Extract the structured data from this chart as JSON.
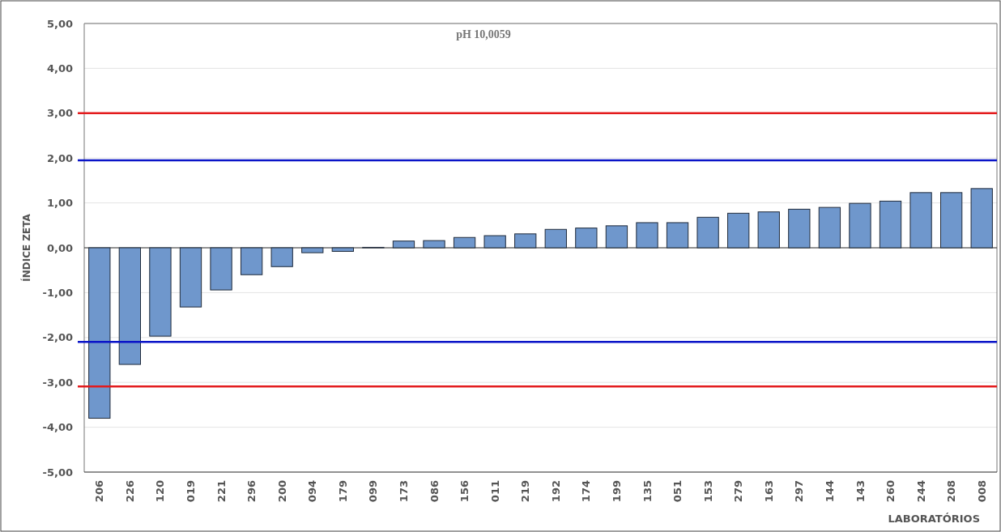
{
  "chart_data": {
    "type": "bar",
    "title": "pH 10,0059",
    "xlabel": "LABORATÓRIOS",
    "ylabel": "ÍNDICE ZETA",
    "categories": [
      "206",
      "226",
      "120",
      "019",
      "221",
      "296",
      "200",
      "094",
      "179",
      "099",
      "173",
      "086",
      "156",
      "011",
      "219",
      "192",
      "174",
      "199",
      "135",
      "051",
      "153",
      "279",
      "163",
      "297",
      "144",
      "143",
      "260",
      "244",
      "208",
      "008"
    ],
    "values": [
      -3.8,
      -2.6,
      -1.97,
      -1.32,
      -0.94,
      -0.6,
      -0.42,
      -0.11,
      -0.08,
      0.01,
      0.15,
      0.16,
      0.23,
      0.27,
      0.31,
      0.41,
      0.44,
      0.49,
      0.56,
      0.56,
      0.68,
      0.77,
      0.8,
      0.86,
      0.9,
      0.99,
      1.04,
      1.23,
      1.23,
      1.32
    ],
    "color": "#6f97cc",
    "ylim": [
      -5,
      5
    ],
    "yticks": [
      {
        "value": -5,
        "label": "-5,00"
      },
      {
        "value": -4,
        "label": "-4,00"
      },
      {
        "value": -3,
        "label": "-3,00"
      },
      {
        "value": -2,
        "label": "-2,00"
      },
      {
        "value": -1,
        "label": "-1,00"
      },
      {
        "value": 0,
        "label": "0,00"
      },
      {
        "value": 1,
        "label": "1,00"
      },
      {
        "value": 2,
        "label": "2,00"
      },
      {
        "value": 3,
        "label": "3,00"
      },
      {
        "value": 4,
        "label": "4,00"
      },
      {
        "value": 5,
        "label": "5,00"
      }
    ],
    "grid": "y",
    "ref_lines": [
      {
        "axis": "y",
        "value": 3.0,
        "color": "#e31a1c"
      },
      {
        "axis": "y",
        "value": 1.95,
        "color": "#0a14c8"
      },
      {
        "axis": "y",
        "value": -2.1,
        "color": "#0a14c8"
      },
      {
        "axis": "y",
        "value": -3.09,
        "color": "#e31a1c"
      }
    ]
  }
}
